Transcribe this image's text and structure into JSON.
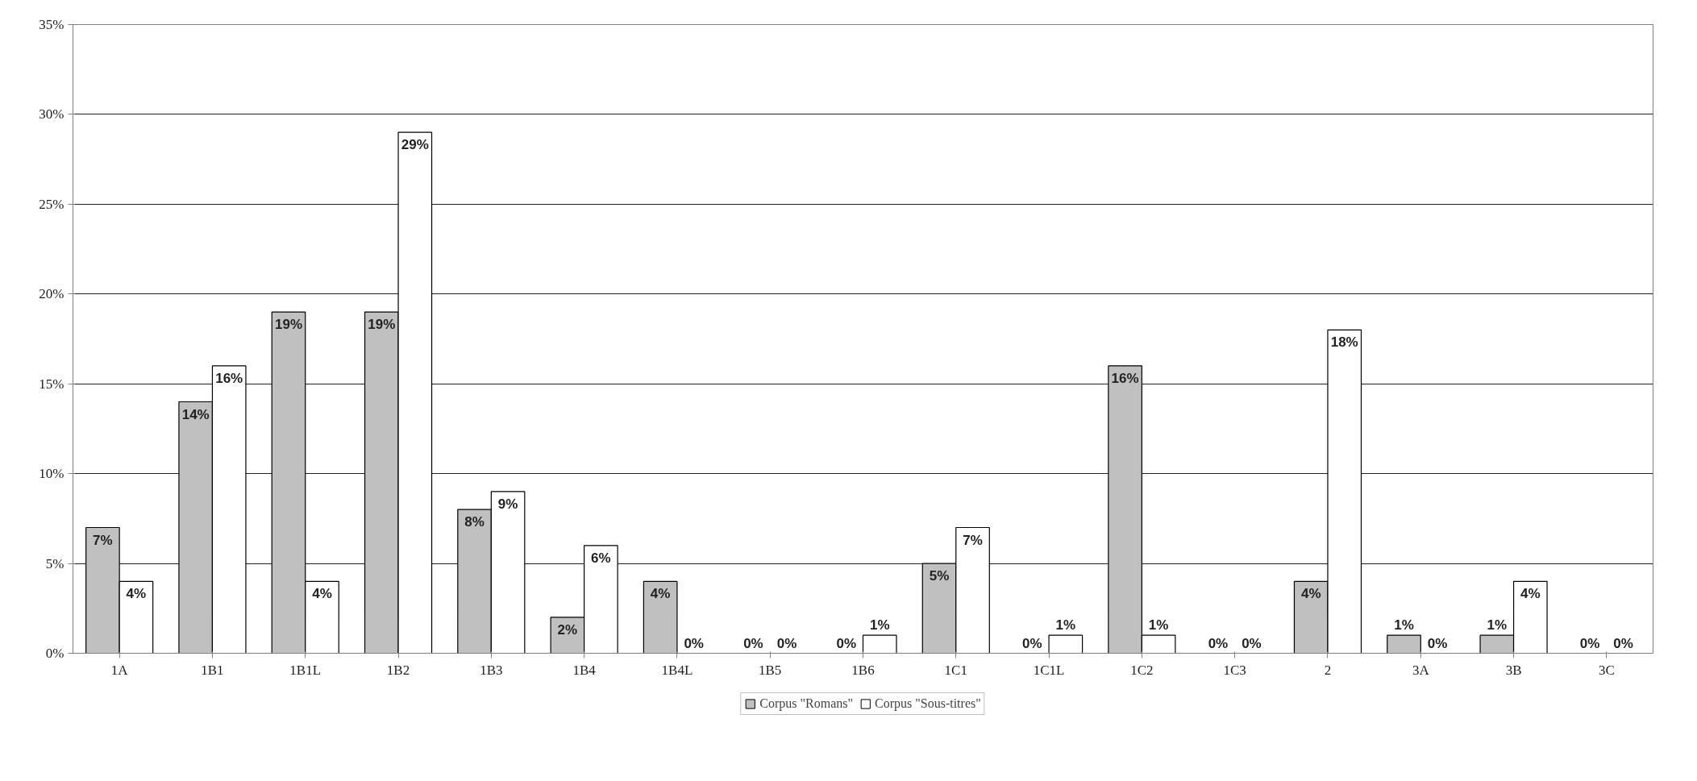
{
  "chart_data": {
    "type": "bar",
    "categories": [
      "1A",
      "1B1",
      "1B1L",
      "1B2",
      "1B3",
      "1B4",
      "1B4L",
      "1B5",
      "1B6",
      "1C1",
      "1C1L",
      "1C2",
      "1C3",
      "2",
      "3A",
      "3B",
      "3C"
    ],
    "series": [
      {
        "name": "Corpus \"Romans\"",
        "color": "#c0c0c0",
        "values": [
          7,
          14,
          19,
          19,
          8,
          2,
          4,
          0,
          0,
          5,
          0,
          16,
          0,
          4,
          1,
          1,
          0
        ],
        "value_labels": [
          "7%",
          "14%",
          "19%",
          "19%",
          "8%",
          "2%",
          "4%",
          "0%",
          "0%",
          "5%",
          "0%",
          "16%",
          "0%",
          "4%",
          "1%",
          "1%",
          "0%"
        ]
      },
      {
        "name": "Corpus \"Sous-titres\"",
        "color": "#ffffff",
        "values": [
          4,
          16,
          4,
          29,
          9,
          6,
          0,
          0,
          1,
          7,
          1,
          1,
          0,
          18,
          0,
          4,
          0
        ],
        "value_labels": [
          "4%",
          "16%",
          "4%",
          "29%",
          "9%",
          "6%",
          "0%",
          "0%",
          "1%",
          "7%",
          "1%",
          "1%",
          "0%",
          "18%",
          "0%",
          "4%",
          "0%"
        ]
      }
    ],
    "ylim": [
      0,
      35
    ],
    "yticks": [
      {
        "value": 0,
        "label": "0%"
      },
      {
        "value": 5,
        "label": "5%"
      },
      {
        "value": 10,
        "label": "10%"
      },
      {
        "value": 15,
        "label": "15%"
      },
      {
        "value": 20,
        "label": "20%"
      },
      {
        "value": 25,
        "label": "25%"
      },
      {
        "value": 30,
        "label": "30%"
      },
      {
        "value": 35,
        "label": "35%"
      }
    ],
    "grid": "y",
    "legend": "bottom"
  }
}
